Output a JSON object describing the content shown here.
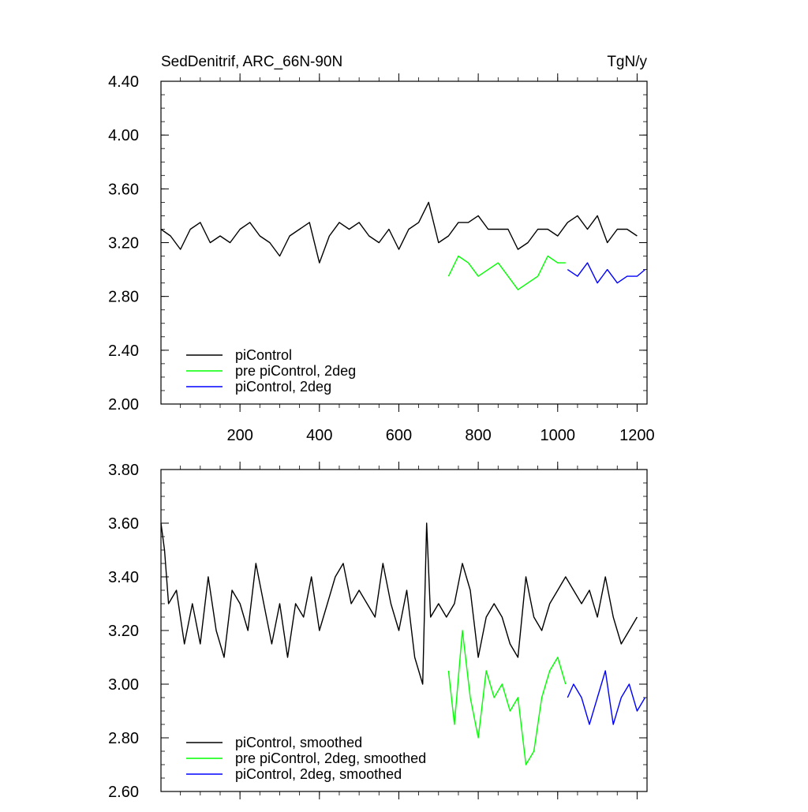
{
  "chart_data": [
    {
      "type": "line",
      "title": "SedDenitrif, ARC_66N-90N",
      "units": "TgN/y",
      "xlabel": "",
      "ylabel": "",
      "xlim": [
        1,
        1225
      ],
      "ylim": [
        2.0,
        4.4
      ],
      "x_ticks": [
        200,
        400,
        600,
        800,
        1000,
        1200
      ],
      "x_tick_labels": [
        "200",
        "400",
        "600",
        "800",
        "1000",
        "1200"
      ],
      "y_ticks": [
        2.0,
        2.4,
        2.8,
        3.2,
        3.6,
        4.0,
        4.4
      ],
      "y_tick_labels": [
        "2.00",
        "2.40",
        "2.80",
        "3.20",
        "3.60",
        "4.00",
        "4.40"
      ],
      "legend_position": "bottom-left",
      "grid": false,
      "series": [
        {
          "name": "piControl",
          "color": "#000000",
          "x": [
            1,
            25,
            50,
            75,
            100,
            125,
            150,
            175,
            200,
            225,
            250,
            275,
            300,
            325,
            350,
            375,
            400,
            425,
            450,
            475,
            500,
            525,
            550,
            575,
            600,
            625,
            650,
            675,
            700,
            725,
            750,
            775,
            800,
            825,
            850,
            875,
            900,
            925,
            950,
            975,
            1000,
            1025,
            1050,
            1075,
            1100,
            1125,
            1150,
            1175,
            1200
          ],
          "y": [
            3.3,
            3.25,
            3.15,
            3.3,
            3.35,
            3.2,
            3.25,
            3.2,
            3.3,
            3.35,
            3.25,
            3.2,
            3.1,
            3.25,
            3.3,
            3.35,
            3.05,
            3.25,
            3.35,
            3.3,
            3.35,
            3.25,
            3.2,
            3.3,
            3.15,
            3.3,
            3.35,
            3.5,
            3.2,
            3.25,
            3.35,
            3.35,
            3.4,
            3.3,
            3.3,
            3.3,
            3.15,
            3.2,
            3.3,
            3.3,
            3.25,
            3.35,
            3.4,
            3.3,
            3.4,
            3.2,
            3.3,
            3.3,
            3.25
          ]
        },
        {
          "name": "pre piControl, 2deg",
          "color": "#00ff00",
          "x": [
            725,
            750,
            775,
            800,
            825,
            850,
            875,
            900,
            925,
            950,
            975,
            1000,
            1020
          ],
          "y": [
            2.95,
            3.1,
            3.05,
            2.95,
            3.0,
            3.05,
            2.95,
            2.85,
            2.9,
            2.95,
            3.1,
            3.05,
            3.05
          ]
        },
        {
          "name": "piControl, 2deg",
          "color": "#0000ff",
          "x": [
            1025,
            1050,
            1075,
            1100,
            1125,
            1150,
            1175,
            1200,
            1220
          ],
          "y": [
            3.0,
            2.95,
            3.05,
            2.9,
            3.0,
            2.9,
            2.95,
            2.95,
            3.0
          ]
        }
      ]
    },
    {
      "type": "line",
      "title": "",
      "xlabel": "",
      "ylabel": "",
      "xlim": [
        1,
        1225
      ],
      "ylim": [
        2.6,
        3.8
      ],
      "x_ticks": [
        200,
        400,
        600,
        800,
        1000,
        1200
      ],
      "y_ticks": [
        2.6,
        2.8,
        3.0,
        3.2,
        3.4,
        3.6,
        3.8
      ],
      "y_tick_labels": [
        "2.60",
        "2.80",
        "3.00",
        "3.20",
        "3.40",
        "3.60",
        "3.80"
      ],
      "legend_position": "bottom-left",
      "grid": false,
      "series": [
        {
          "name": "piControl, smoothed",
          "color": "#000000",
          "x": [
            1,
            10,
            20,
            40,
            60,
            80,
            100,
            120,
            140,
            160,
            180,
            200,
            220,
            240,
            260,
            280,
            300,
            320,
            340,
            360,
            380,
            400,
            420,
            440,
            460,
            480,
            500,
            520,
            540,
            560,
            580,
            600,
            620,
            640,
            660,
            670,
            680,
            700,
            720,
            740,
            760,
            780,
            800,
            820,
            840,
            860,
            880,
            900,
            920,
            940,
            960,
            980,
            1000,
            1020,
            1040,
            1060,
            1080,
            1100,
            1120,
            1140,
            1160,
            1180,
            1200
          ],
          "y": [
            3.6,
            3.5,
            3.3,
            3.35,
            3.15,
            3.3,
            3.15,
            3.4,
            3.2,
            3.1,
            3.35,
            3.3,
            3.2,
            3.45,
            3.3,
            3.15,
            3.3,
            3.1,
            3.3,
            3.25,
            3.4,
            3.2,
            3.3,
            3.4,
            3.45,
            3.3,
            3.35,
            3.3,
            3.25,
            3.45,
            3.3,
            3.2,
            3.35,
            3.1,
            3.0,
            3.6,
            3.25,
            3.3,
            3.25,
            3.3,
            3.45,
            3.35,
            3.1,
            3.25,
            3.3,
            3.25,
            3.15,
            3.1,
            3.4,
            3.25,
            3.2,
            3.3,
            3.35,
            3.4,
            3.35,
            3.3,
            3.35,
            3.25,
            3.4,
            3.25,
            3.15,
            3.2,
            3.25
          ]
        },
        {
          "name": "pre piControl, 2deg, smoothed",
          "color": "#00ff00",
          "x": [
            725,
            740,
            760,
            780,
            800,
            820,
            840,
            860,
            880,
            900,
            920,
            940,
            960,
            980,
            1000,
            1020
          ],
          "y": [
            3.05,
            2.85,
            3.2,
            2.95,
            2.8,
            3.05,
            2.95,
            3.0,
            2.9,
            2.95,
            2.7,
            2.75,
            2.95,
            3.05,
            3.1,
            3.0
          ]
        },
        {
          "name": "piControl, 2deg, smoothed",
          "color": "#0000ff",
          "x": [
            1025,
            1040,
            1060,
            1080,
            1100,
            1120,
            1140,
            1160,
            1180,
            1200,
            1220
          ],
          "y": [
            2.95,
            3.0,
            2.95,
            2.85,
            2.95,
            3.05,
            2.85,
            2.95,
            3.0,
            2.9,
            2.95
          ]
        }
      ]
    }
  ]
}
